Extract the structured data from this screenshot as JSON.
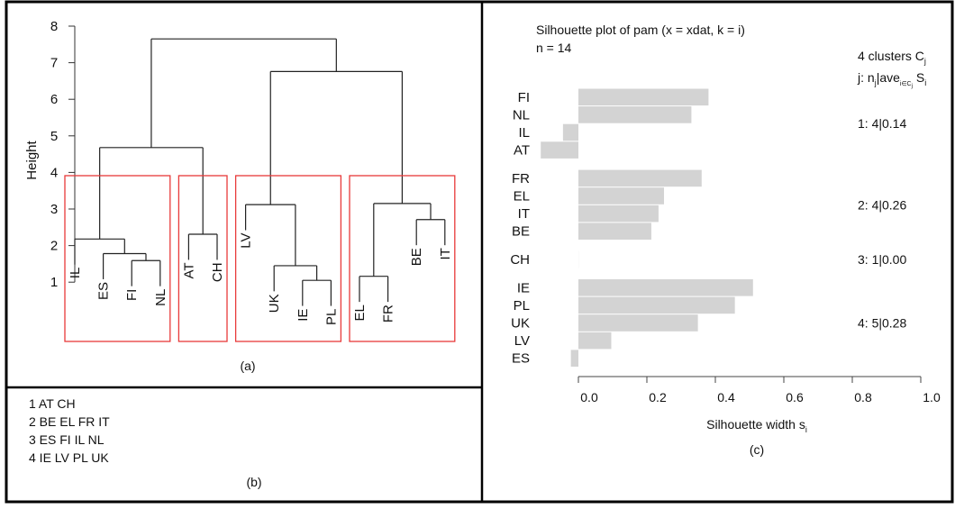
{
  "chart_data": [
    {
      "type": "dendrogram",
      "panel_label": "(a)",
      "ylabel": "Height",
      "ylim": [
        1,
        8
      ],
      "yticks": [
        "1",
        "2",
        "3",
        "4",
        "5",
        "6",
        "7",
        "8"
      ],
      "leaves": [
        "IL",
        "ES",
        "FI",
        "NL",
        "AT",
        "CH",
        "LV",
        "UK",
        "IE",
        "PL",
        "EL",
        "FR",
        "BE",
        "IT"
      ],
      "merges": [
        {
          "a": "FI",
          "b": "NL",
          "height": 1.59
        },
        {
          "a": "ES",
          "b": "m0",
          "height": 1.78
        },
        {
          "a": "IL",
          "b": "m1",
          "height": 2.18
        },
        {
          "a": "AT",
          "b": "CH",
          "height": 2.31
        },
        {
          "a": "m2",
          "b": "m3",
          "height": 4.68
        },
        {
          "a": "IE",
          "b": "PL",
          "height": 1.05
        },
        {
          "a": "UK",
          "b": "m5",
          "height": 1.45
        },
        {
          "a": "LV",
          "b": "m6",
          "height": 3.12
        },
        {
          "a": "EL",
          "b": "FR",
          "height": 1.16
        },
        {
          "a": "BE",
          "b": "IT",
          "height": 2.71
        },
        {
          "a": "m8",
          "b": "m9",
          "height": 3.15
        },
        {
          "a": "m7",
          "b": "m10",
          "height": 6.76
        },
        {
          "a": "m4",
          "b": "m11",
          "height": 7.65
        }
      ],
      "highlight_groups": [
        [
          "IL",
          "ES",
          "FI",
          "NL"
        ],
        [
          "AT",
          "CH"
        ],
        [
          "LV",
          "UK",
          "IE",
          "PL"
        ],
        [
          "EL",
          "FR",
          "BE",
          "IT"
        ]
      ],
      "highlight_color": "#e83a3a"
    },
    {
      "type": "table",
      "panel_label": "(b)",
      "rows": [
        "1 AT CH",
        "2 BE EL FR IT",
        "3 ES FI IL NL",
        "4 IE LV PL UK"
      ]
    },
    {
      "type": "bar",
      "orientation": "horizontal",
      "panel_label": "(c)",
      "title": "Silhouette plot of pam (x = xdat, k = i)",
      "subtitle": "n = 14",
      "legend_title_1": "4 clusters C",
      "legend_title_1_sub": "j",
      "legend_title_2": "j: n",
      "legend_title_2_sub": "j",
      "legend_title_2_mid": "|ave",
      "legend_title_2_sub2": "i∈C",
      "legend_title_2_sub3": "j",
      "legend_title_2_end": " S",
      "legend_title_2_sub4": "i",
      "xlabel": "Silhouette width s",
      "xlabel_sub": "i",
      "xlim": [
        0,
        1
      ],
      "xticks": [
        "0.0",
        "0.2",
        "0.4",
        "0.6",
        "0.8",
        "1.0"
      ],
      "bar_color": "#d3d3d3",
      "clusters": [
        {
          "label": "1: 4|0.14",
          "items": [
            {
              "name": "FI",
              "value": 0.38
            },
            {
              "name": "NL",
              "value": 0.33
            },
            {
              "name": "IL",
              "value": -0.045
            },
            {
              "name": "AT",
              "value": -0.11
            }
          ]
        },
        {
          "label": "2: 4|0.26",
          "items": [
            {
              "name": "FR",
              "value": 0.36
            },
            {
              "name": "EL",
              "value": 0.25
            },
            {
              "name": "IT",
              "value": 0.234
            },
            {
              "name": "BE",
              "value": 0.213
            }
          ]
        },
        {
          "label": "3: 1|0.00",
          "items": [
            {
              "name": "CH",
              "value": 0.0
            }
          ]
        },
        {
          "label": "4: 5|0.28",
          "items": [
            {
              "name": "IE",
              "value": 0.51
            },
            {
              "name": "PL",
              "value": 0.457
            },
            {
              "name": "UK",
              "value": 0.349
            },
            {
              "name": "LV",
              "value": 0.096
            },
            {
              "name": "ES",
              "value": -0.022
            }
          ]
        }
      ]
    }
  ]
}
